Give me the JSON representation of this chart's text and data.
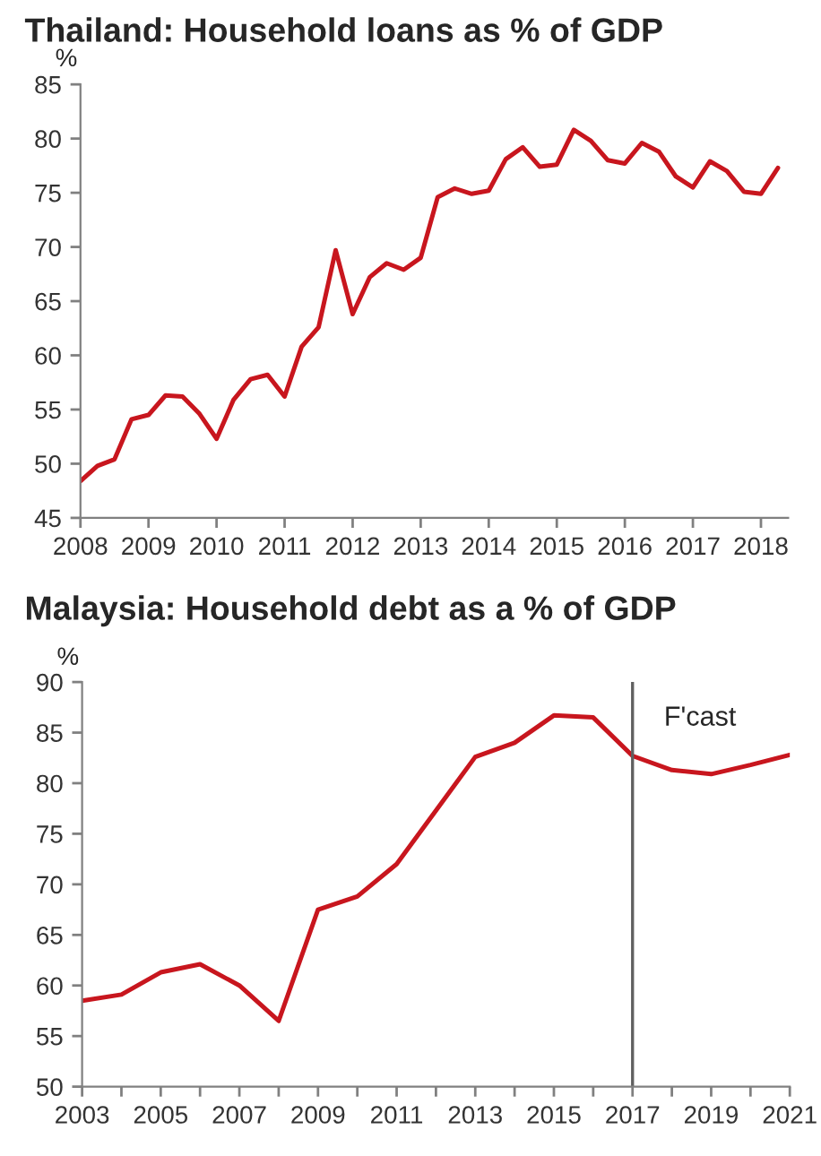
{
  "chart_data": [
    {
      "type": "line",
      "title": "Thailand: Household loans as % of GDP",
      "ylabel": "%",
      "series": [
        {
          "color": "#c8161e",
          "x": [
            2008.0,
            2008.25,
            2008.5,
            2008.75,
            2009.0,
            2009.25,
            2009.5,
            2009.75,
            2010.0,
            2010.25,
            2010.5,
            2010.75,
            2011.0,
            2011.25,
            2011.5,
            2011.75,
            2012.0,
            2012.25,
            2012.5,
            2012.75,
            2013.0,
            2013.25,
            2013.5,
            2013.75,
            2014.0,
            2014.25,
            2014.5,
            2014.75,
            2015.0,
            2015.25,
            2015.5,
            2015.75,
            2016.0,
            2016.25,
            2016.5,
            2016.75,
            2017.0,
            2017.25,
            2017.5,
            2017.75,
            2018.0,
            2018.25
          ],
          "values": [
            48.4,
            49.8,
            50.4,
            54.1,
            54.5,
            56.3,
            56.2,
            54.6,
            52.3,
            55.9,
            57.8,
            58.2,
            56.2,
            60.8,
            62.6,
            69.7,
            63.8,
            67.2,
            68.5,
            67.9,
            69.0,
            74.6,
            75.4,
            74.9,
            75.2,
            78.1,
            79.2,
            77.4,
            77.6,
            80.8,
            79.8,
            78.0,
            77.7,
            79.6,
            78.8,
            76.5,
            75.5,
            77.9,
            77.0,
            75.1,
            74.9,
            77.3
          ]
        }
      ],
      "xlim": [
        2008,
        2018.4
      ],
      "xticks": [
        2008,
        2009,
        2010,
        2011,
        2012,
        2013,
        2014,
        2015,
        2016,
        2017,
        2018
      ],
      "ylim": [
        45,
        85
      ],
      "yticks": [
        45,
        50,
        55,
        60,
        65,
        70,
        75,
        80,
        85
      ],
      "grid": false,
      "legend": false,
      "line_style": "solid",
      "marker": "none"
    },
    {
      "type": "line",
      "title": "Malaysia: Household debt as a % of GDP",
      "ylabel": "%",
      "series": [
        {
          "color": "#c8161e",
          "x": [
            2003,
            2004,
            2005,
            2006,
            2007,
            2008,
            2009,
            2010,
            2011,
            2012,
            2013,
            2014,
            2015,
            2016,
            2017,
            2018,
            2019,
            2020,
            2021
          ],
          "values": [
            58.5,
            59.1,
            61.3,
            62.1,
            60.0,
            56.5,
            67.5,
            68.8,
            72.0,
            77.3,
            82.6,
            84.0,
            86.7,
            86.5,
            82.7,
            81.3,
            80.9,
            81.8,
            82.8
          ]
        }
      ],
      "xlim": [
        2003,
        2021
      ],
      "xticks": [
        2003,
        {
          "value": 2004,
          "label": null
        },
        2005,
        {
          "value": 2006,
          "label": null
        },
        2007,
        {
          "value": 2008,
          "label": null
        },
        2009,
        {
          "value": 2010,
          "label": null
        },
        2011,
        {
          "value": 2012,
          "label": null
        },
        2013,
        {
          "value": 2014,
          "label": null
        },
        2015,
        {
          "value": 2016,
          "label": null
        },
        2017,
        {
          "value": 2018,
          "label": null
        },
        2019,
        {
          "value": 2020,
          "label": null
        },
        2021
      ],
      "ylim": [
        50,
        90
      ],
      "yticks": [
        50,
        55,
        60,
        65,
        70,
        75,
        80,
        85,
        90
      ],
      "ref_lines": [
        {
          "axis": "x",
          "value": 2017,
          "label": "F'cast",
          "color": "#606060"
        }
      ],
      "grid": false,
      "legend": false,
      "line_style": "solid",
      "marker": "none"
    }
  ]
}
